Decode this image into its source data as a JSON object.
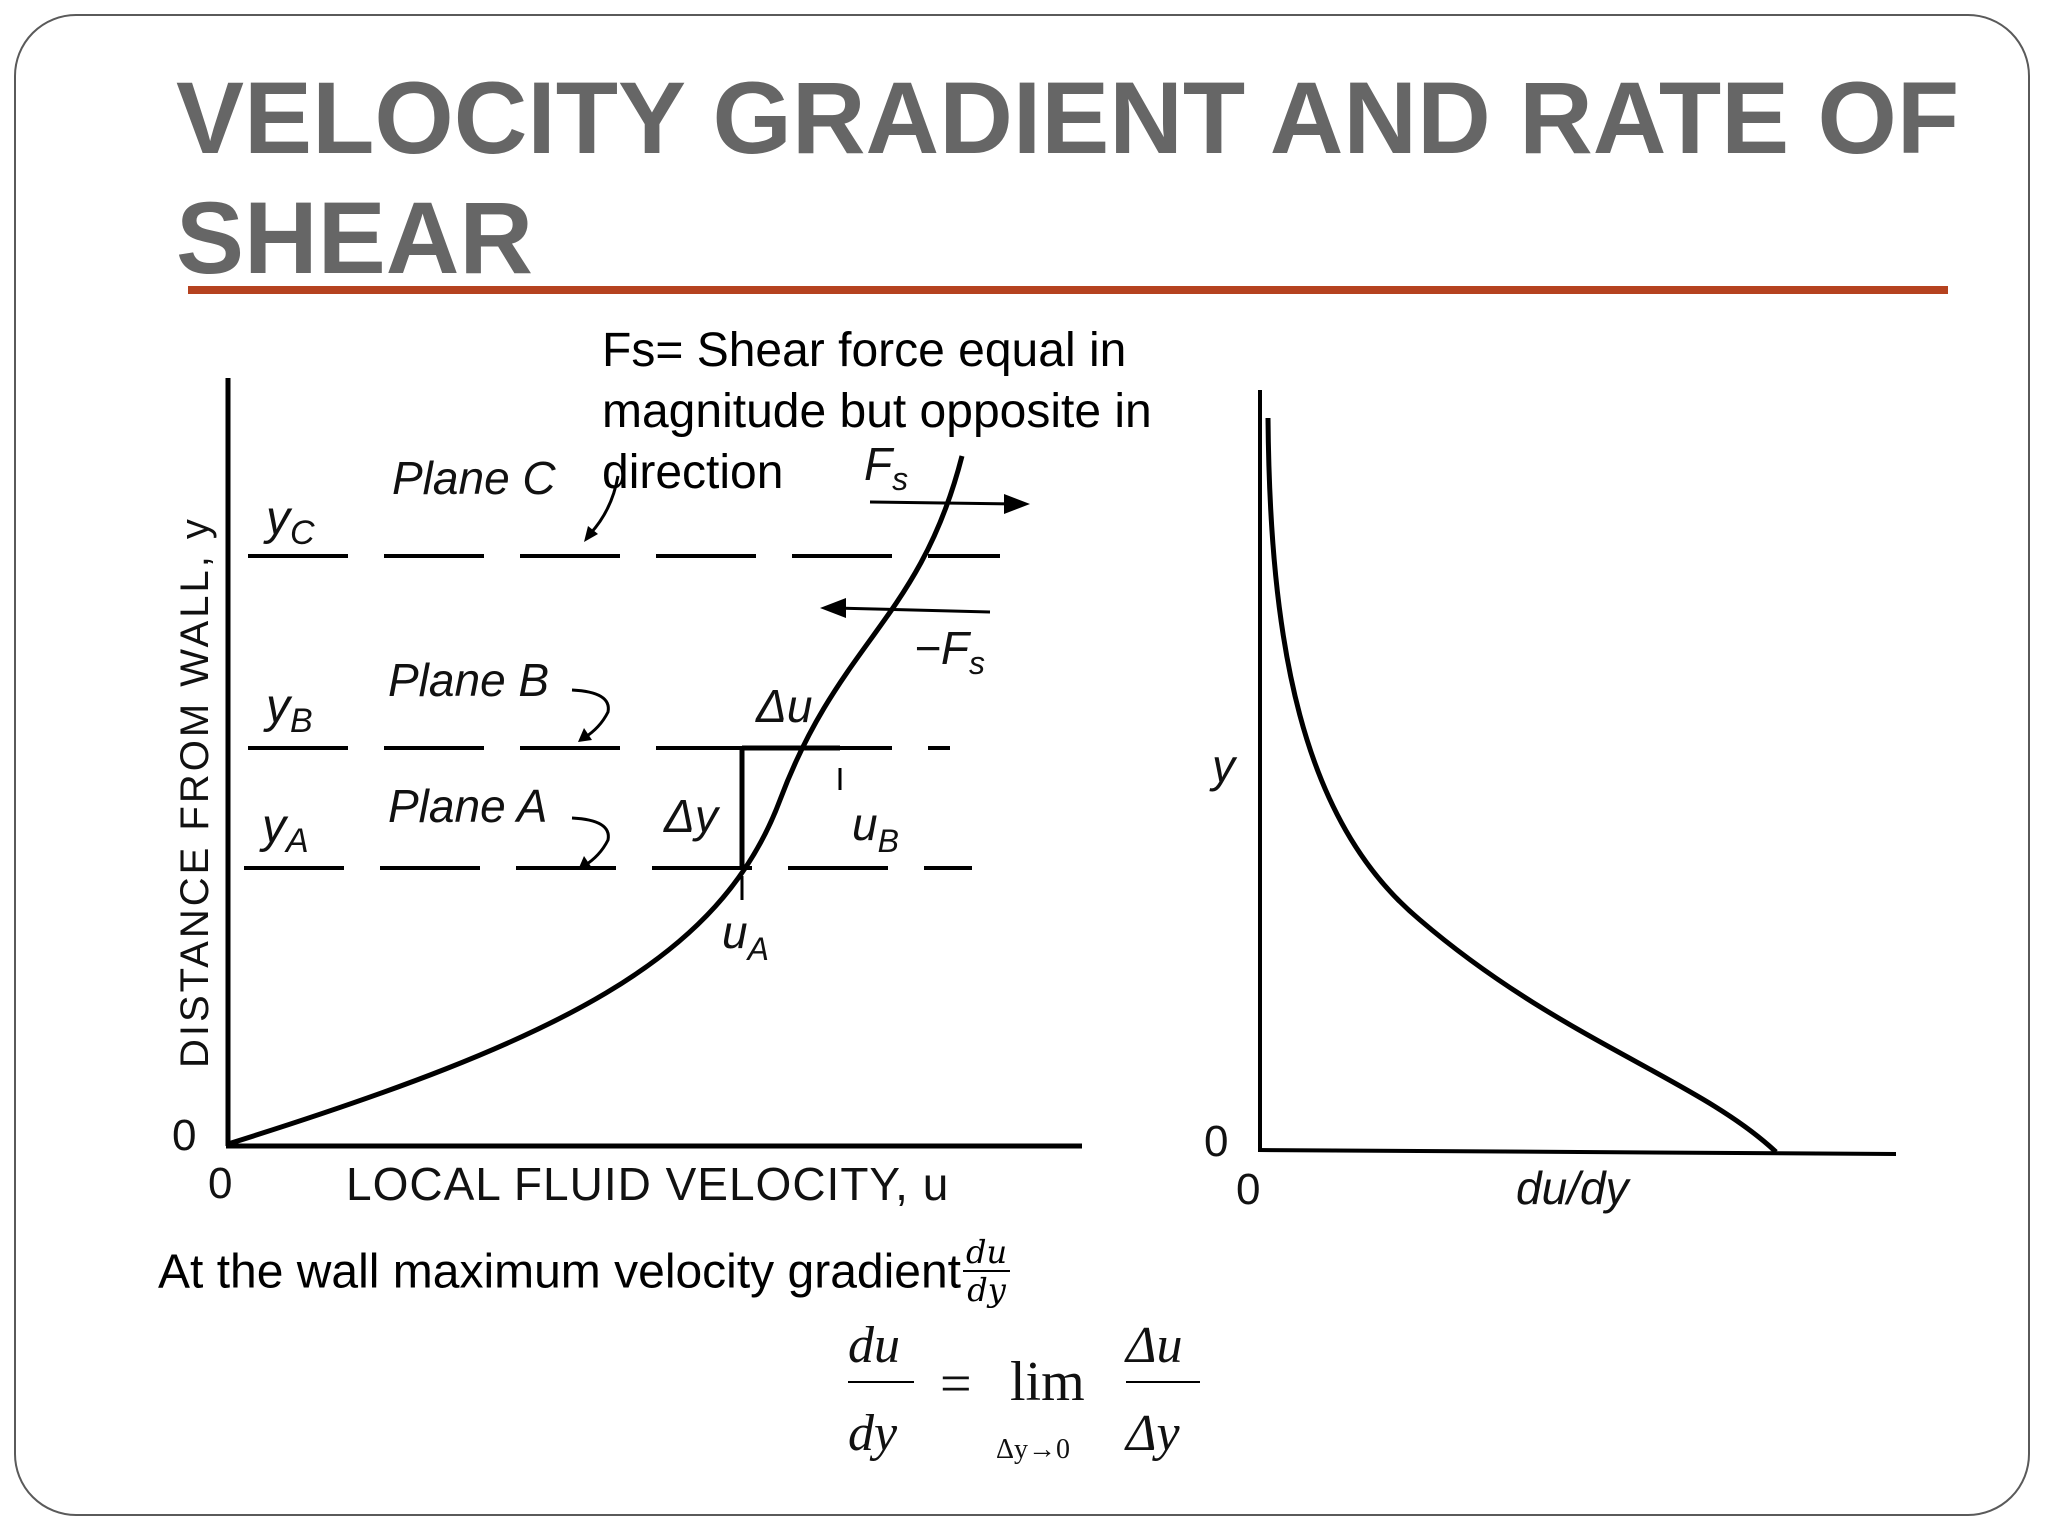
{
  "slide": {
    "title": "VELOCITY GRADIENT AND RATE OF SHEAR",
    "accent_color": "#b5421f",
    "title_color": "#666666"
  },
  "notes": {
    "shear_force": "Fs= Shear force equal in magnitude but opposite in direction",
    "wall_gradient": "At the wall maximum velocity gradient",
    "wall_gradient_numerator": "du",
    "wall_gradient_denominator": "dy"
  },
  "left_diagram": {
    "y_axis_label": "DISTANCE FROM WALL, y",
    "x_axis_label": "LOCAL FLUID VELOCITY, u",
    "origin_x": "0",
    "origin_y": "0",
    "plane_c": "Plane C",
    "plane_b": "Plane B",
    "plane_a": "Plane A",
    "y_c": "y",
    "y_c_sub": "C",
    "y_b": "y",
    "y_b_sub": "B",
    "y_a": "y",
    "y_a_sub": "A",
    "delta_u": "Δu",
    "delta_y": "Δy",
    "u_a": "u",
    "u_a_sub": "A",
    "u_b": "u",
    "u_b_sub": "B",
    "fs": "F",
    "fs_sub": "s",
    "neg_fs": "−F",
    "neg_fs_sub": "s"
  },
  "right_diagram": {
    "y_axis_label": "y",
    "x_axis_label": "du/dy",
    "origin_x": "0",
    "origin_y": "0"
  },
  "equation": {
    "lhs_num": "du",
    "lhs_den": "dy",
    "equals": "=",
    "lim": "lim",
    "lim_sub": "Δy→0",
    "rhs_num": "Δu",
    "rhs_den": "Δy"
  }
}
